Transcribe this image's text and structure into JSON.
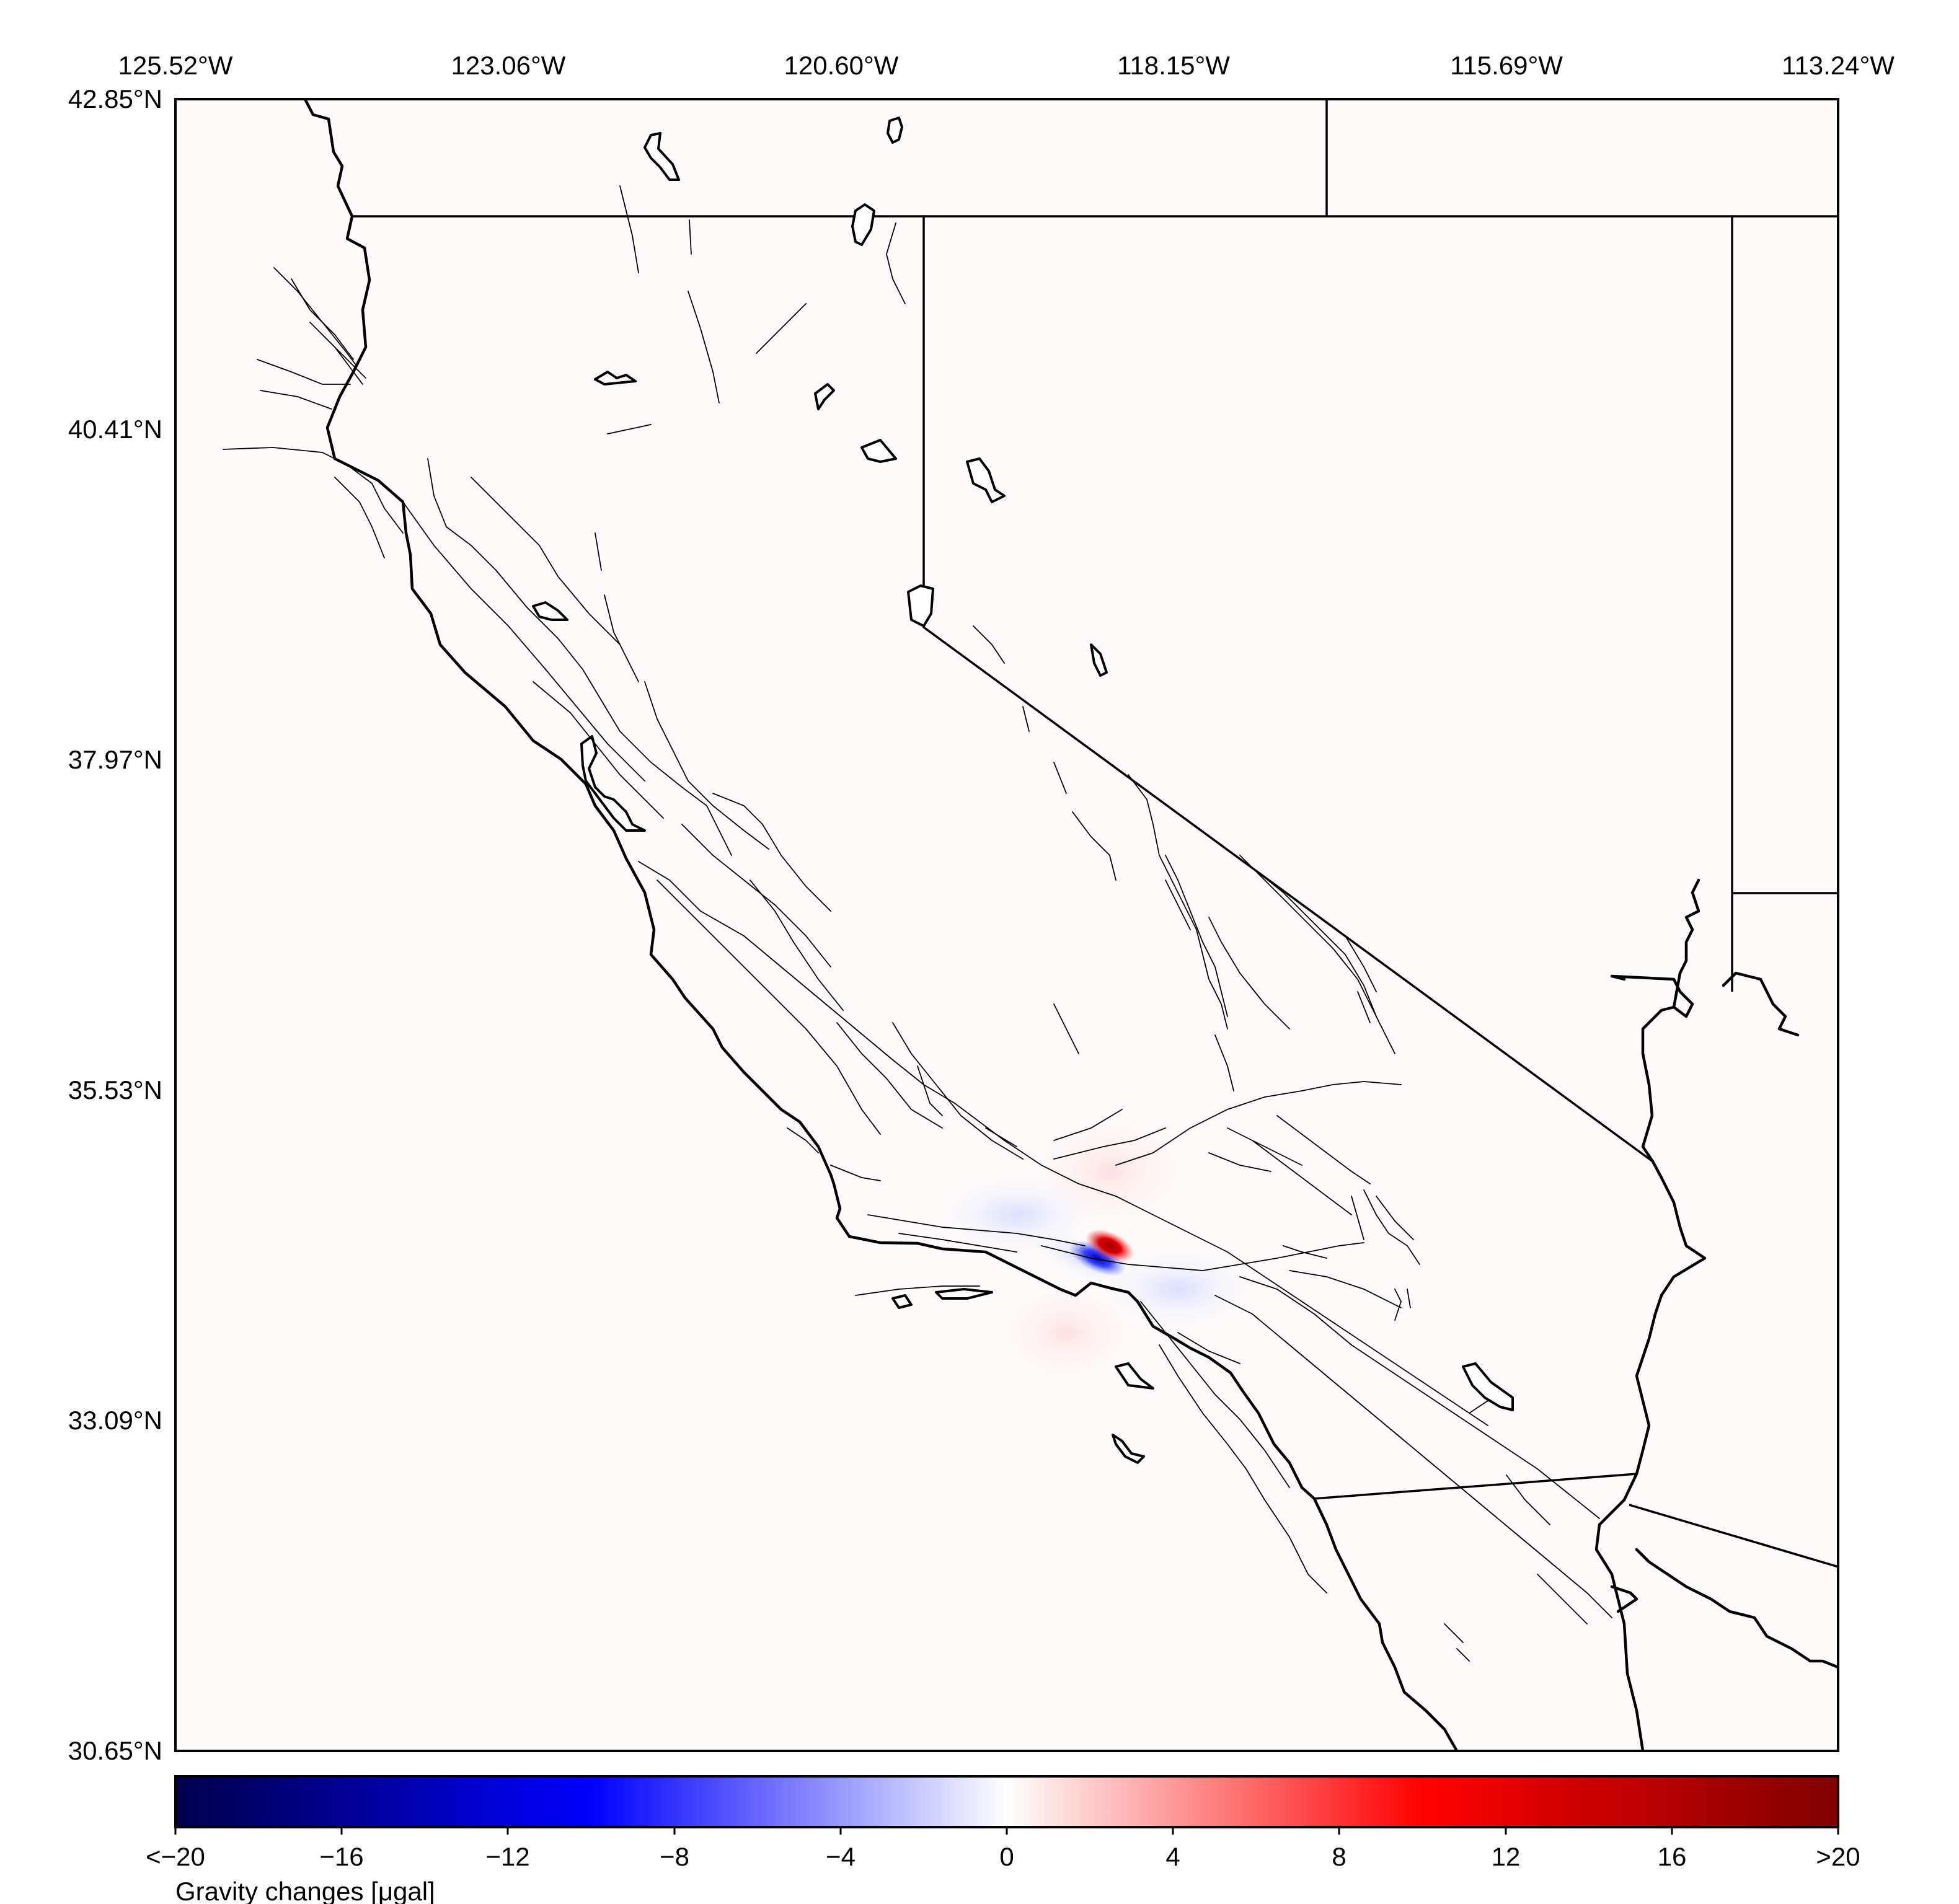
{
  "map": {
    "lon_labels": [
      "125.52°W",
      "123.06°W",
      "120.60°W",
      "118.15°W",
      "115.69°W",
      "113.24°W"
    ],
    "lat_labels": [
      "42.85°N",
      "40.41°N",
      "37.97°N",
      "35.53°N",
      "33.09°N",
      "30.65°N"
    ],
    "extent": {
      "lon_min": -125.52,
      "lon_max": -113.24,
      "lat_min": 30.65,
      "lat_max": 42.85
    },
    "background": "#fffbfb",
    "anomaly": {
      "center_lon": -118.55,
      "center_lat": 34.3,
      "positive_color": "#cc0000",
      "negative_color": "#0000dd"
    }
  },
  "colorbar": {
    "tick_labels": [
      "<−20",
      "−16",
      "−12",
      "−8",
      "−4",
      "0",
      "4",
      "8",
      "12",
      "16",
      ">20"
    ],
    "label": "Gravity changes [μgal]",
    "min": -20,
    "max": 20,
    "colors": [
      "#00004c",
      "#0000ff",
      "#ffffff",
      "#ff0000",
      "#7f0000"
    ]
  }
}
